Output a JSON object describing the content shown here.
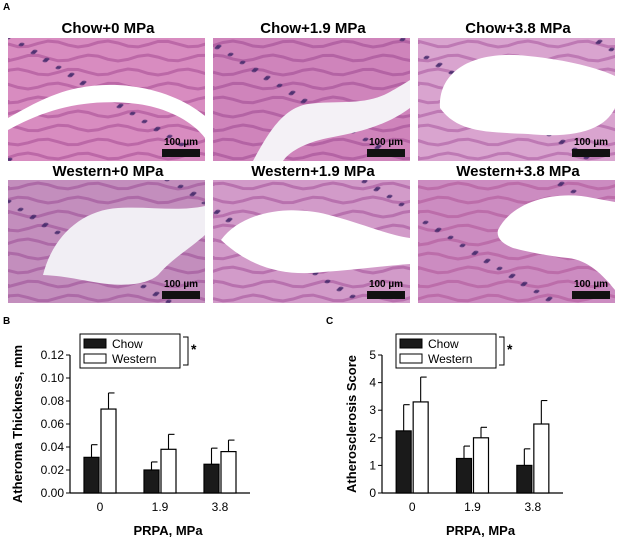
{
  "panel_a": {
    "letter": "A",
    "scale_label": "100 µm",
    "tiles": [
      {
        "title": "Chow+0 MPa",
        "bg": "#d88cc0",
        "tissue": "#b0589c",
        "lumen": "#ffffff"
      },
      {
        "title": "Chow+1.9 MPa",
        "bg": "#cf84bb",
        "tissue": "#a8559a",
        "lumen": "#f4f1f6"
      },
      {
        "title": "Chow+3.8 MPa",
        "bg": "#d9a4cf",
        "tissue": "#b266a8",
        "lumen": "#ffffff"
      },
      {
        "title": "Western+0 MPa",
        "bg": "#c38ebd",
        "tissue": "#a45b9e",
        "lumen": "#f1eef4"
      },
      {
        "title": "Western+1.9 MPa",
        "bg": "#d29bc9",
        "tissue": "#ad60a2",
        "lumen": "#ffffff"
      },
      {
        "title": "Western+3.8 MPa",
        "bg": "#cc8cc1",
        "tissue": "#b5609f",
        "lumen": "#ffffff"
      }
    ]
  },
  "panel_b": {
    "letter": "B",
    "legend": {
      "chow": "Chow",
      "western": "Western",
      "sig": "*"
    }
  },
  "panel_c": {
    "letter": "C",
    "legend": {
      "chow": "Chow",
      "western": "Western",
      "sig": "*"
    }
  },
  "colors": {
    "chow": "#1a1a1a",
    "western": "#ffffff",
    "stroke": "#000000"
  },
  "chart_data": [
    {
      "type": "bar",
      "xlabel": "PRPA, MPa",
      "ylabel": "Atheroma Thickness, mm",
      "categories": [
        "0",
        "1.9",
        "3.8"
      ],
      "yticks": [
        "0.00",
        "0.02",
        "0.04",
        "0.06",
        "0.08",
        "0.10",
        "0.12"
      ],
      "ylim": [
        0,
        0.12
      ],
      "series": [
        {
          "name": "Chow",
          "values": [
            0.031,
            0.02,
            0.025
          ],
          "errors": [
            0.011,
            0.007,
            0.014
          ]
        },
        {
          "name": "Western",
          "values": [
            0.073,
            0.038,
            0.036
          ],
          "errors": [
            0.014,
            0.013,
            0.01
          ]
        }
      ],
      "annotation": "*"
    },
    {
      "type": "bar",
      "xlabel": "PRPA, MPa",
      "ylabel": "Atherosclerosis Score",
      "categories": [
        "0",
        "1.9",
        "3.8"
      ],
      "yticks": [
        "0",
        "1",
        "2",
        "3",
        "4",
        "5"
      ],
      "ylim": [
        0,
        5
      ],
      "series": [
        {
          "name": "Chow",
          "values": [
            2.25,
            1.25,
            1.0
          ],
          "errors": [
            0.95,
            0.45,
            0.6
          ]
        },
        {
          "name": "Western",
          "values": [
            3.3,
            2.0,
            2.5
          ],
          "errors": [
            0.9,
            0.38,
            0.85
          ]
        }
      ],
      "annotation": "*"
    }
  ]
}
